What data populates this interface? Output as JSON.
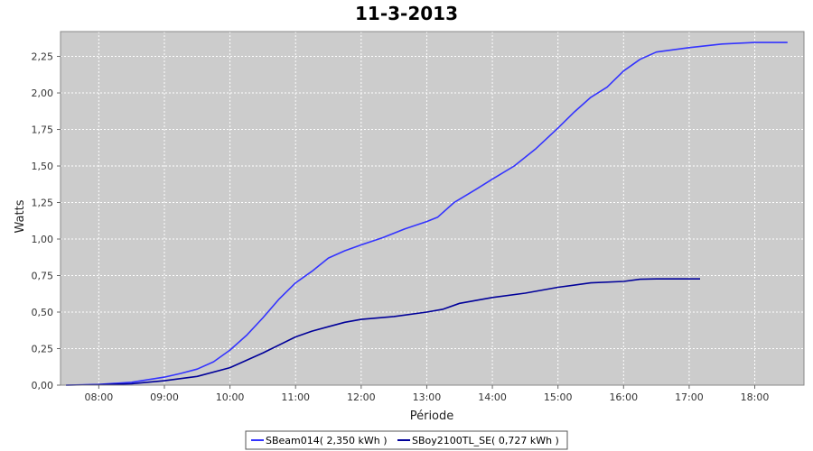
{
  "chart_data": {
    "type": "line",
    "title": "11-3-2013",
    "xlabel": "Période",
    "ylabel": "Watts",
    "xlim": [
      "07:25",
      "18:45"
    ],
    "ylim": [
      0,
      2.42
    ],
    "x_ticks": [
      "08:00",
      "09:00",
      "10:00",
      "11:00",
      "12:00",
      "13:00",
      "14:00",
      "15:00",
      "16:00",
      "17:00",
      "18:00"
    ],
    "y_ticks": [
      "0,00",
      "0,25",
      "0,50",
      "0,75",
      "1,00",
      "1,25",
      "1,50",
      "1,75",
      "2,00",
      "2,25"
    ],
    "grid": true,
    "background": "#cccccc",
    "legend_position": "bottom",
    "series": [
      {
        "name": "SBeam014( 2,350 kWh )",
        "color": "#3333ff",
        "points": [
          [
            "07:30",
            0.0
          ],
          [
            "08:00",
            0.005
          ],
          [
            "08:30",
            0.02
          ],
          [
            "09:00",
            0.055
          ],
          [
            "09:15",
            0.08
          ],
          [
            "09:30",
            0.11
          ],
          [
            "09:45",
            0.16
          ],
          [
            "10:00",
            0.24
          ],
          [
            "10:15",
            0.34
          ],
          [
            "10:30",
            0.46
          ],
          [
            "10:45",
            0.59
          ],
          [
            "11:00",
            0.7
          ],
          [
            "11:15",
            0.78
          ],
          [
            "11:30",
            0.87
          ],
          [
            "11:45",
            0.92
          ],
          [
            "12:00",
            0.96
          ],
          [
            "12:20",
            1.01
          ],
          [
            "12:40",
            1.07
          ],
          [
            "13:00",
            1.12
          ],
          [
            "13:10",
            1.15
          ],
          [
            "13:25",
            1.25
          ],
          [
            "13:45",
            1.34
          ],
          [
            "14:00",
            1.41
          ],
          [
            "14:20",
            1.5
          ],
          [
            "14:40",
            1.62
          ],
          [
            "15:00",
            1.76
          ],
          [
            "15:15",
            1.87
          ],
          [
            "15:30",
            1.97
          ],
          [
            "15:45",
            2.04
          ],
          [
            "16:00",
            2.15
          ],
          [
            "16:15",
            2.23
          ],
          [
            "16:30",
            2.28
          ],
          [
            "17:00",
            2.31
          ],
          [
            "17:30",
            2.335
          ],
          [
            "18:00",
            2.345
          ],
          [
            "18:30",
            2.345
          ]
        ]
      },
      {
        "name": "SBoy2100TL_SE( 0,727 kWh )",
        "color": "#000099",
        "points": [
          [
            "07:30",
            0.0
          ],
          [
            "08:00",
            0.003
          ],
          [
            "08:30",
            0.01
          ],
          [
            "09:00",
            0.03
          ],
          [
            "09:30",
            0.06
          ],
          [
            "10:00",
            0.12
          ],
          [
            "10:30",
            0.22
          ],
          [
            "11:00",
            0.33
          ],
          [
            "11:15",
            0.37
          ],
          [
            "11:30",
            0.4
          ],
          [
            "11:45",
            0.43
          ],
          [
            "12:00",
            0.45
          ],
          [
            "12:30",
            0.47
          ],
          [
            "13:00",
            0.5
          ],
          [
            "13:15",
            0.52
          ],
          [
            "13:30",
            0.56
          ],
          [
            "14:00",
            0.6
          ],
          [
            "14:30",
            0.63
          ],
          [
            "15:00",
            0.67
          ],
          [
            "15:30",
            0.7
          ],
          [
            "16:00",
            0.71
          ],
          [
            "16:15",
            0.725
          ],
          [
            "16:30",
            0.727
          ],
          [
            "17:10",
            0.727
          ]
        ]
      }
    ]
  }
}
